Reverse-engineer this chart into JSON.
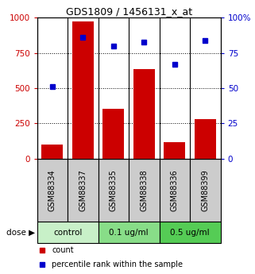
{
  "title": "GDS1809 / 1456131_x_at",
  "categories": [
    "GSM88334",
    "GSM88337",
    "GSM88335",
    "GSM88338",
    "GSM88336",
    "GSM88399"
  ],
  "bar_values": [
    100,
    975,
    355,
    635,
    115,
    280
  ],
  "percentile_values": [
    51,
    86,
    80,
    83,
    67,
    84
  ],
  "bar_color": "#cc0000",
  "marker_color": "#0000cc",
  "ylim_left": [
    0,
    1000
  ],
  "ylim_right": [
    0,
    100
  ],
  "yticks_left": [
    0,
    250,
    500,
    750,
    1000
  ],
  "yticks_right": [
    0,
    25,
    50,
    75,
    100
  ],
  "ytick_labels_left": [
    "0",
    "250",
    "500",
    "750",
    "1000"
  ],
  "ytick_labels_right": [
    "0",
    "25",
    "50",
    "75",
    "100%"
  ],
  "dose_groups": [
    {
      "label": "control",
      "indices": [
        0,
        1
      ],
      "color": "#c8f0c8"
    },
    {
      "label": "0.1 ug/ml",
      "indices": [
        2,
        3
      ],
      "color": "#88dd88"
    },
    {
      "label": "0.5 ug/ml",
      "indices": [
        4,
        5
      ],
      "color": "#55cc55"
    }
  ],
  "dose_label": "dose",
  "legend_bar_label": "count",
  "legend_marker_label": "percentile rank within the sample",
  "background_color": "#ffffff",
  "plot_bg_color": "#ffffff",
  "cell_bg_color": "#cccccc",
  "title_fontsize": 9,
  "tick_fontsize": 7.5,
  "label_fontsize": 7,
  "dose_fontsize": 7.5
}
